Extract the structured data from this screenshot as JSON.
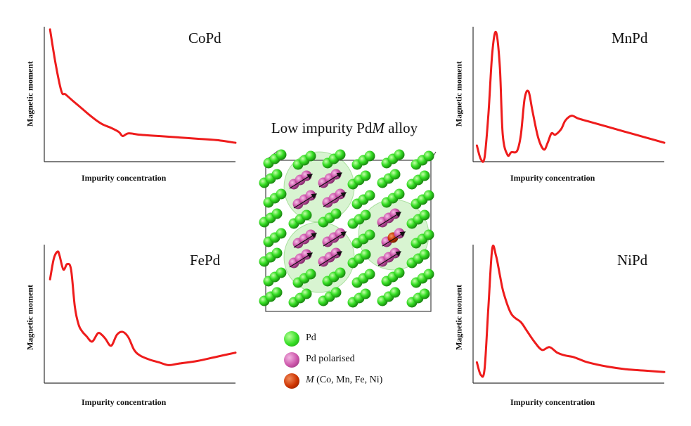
{
  "colors": {
    "curve": "#ee1c1c",
    "axis": "#333333",
    "pd": "#33dd22",
    "pd_polarised": "#cc55aa",
    "impurity": "#cc3300"
  },
  "center": {
    "title_prefix": "Low impurity Pd",
    "title_italic": "M",
    "title_suffix": " alloy",
    "legend": [
      {
        "label": "Pd",
        "color": "#33dd22"
      },
      {
        "label": "Pd polarised",
        "color": "#cc55aa"
      },
      {
        "label_italic": "M",
        "label": " (Co, Mn, Fe, Ni)",
        "color": "#cc3300"
      }
    ]
  },
  "chart_data": [
    {
      "type": "line",
      "title": "CoPd",
      "xlabel": "Impurity concentration",
      "ylabel": "Magnetic moment",
      "xlim": [
        0,
        1
      ],
      "ylim": [
        0,
        1
      ],
      "x": [
        0.03,
        0.06,
        0.09,
        0.11,
        0.15,
        0.2,
        0.25,
        0.3,
        0.35,
        0.39,
        0.41,
        0.44,
        0.5,
        0.6,
        0.7,
        0.8,
        0.9,
        1.0
      ],
      "y": [
        0.98,
        0.72,
        0.52,
        0.5,
        0.45,
        0.39,
        0.33,
        0.28,
        0.25,
        0.22,
        0.19,
        0.21,
        0.2,
        0.19,
        0.18,
        0.17,
        0.16,
        0.14
      ]
    },
    {
      "type": "line",
      "title": "MnPd",
      "xlabel": "Impurity concentration",
      "ylabel": "Magnetic moment",
      "xlim": [
        0,
        1
      ],
      "ylim": [
        0,
        1
      ],
      "x": [
        0.02,
        0.04,
        0.06,
        0.08,
        0.1,
        0.12,
        0.14,
        0.155,
        0.18,
        0.2,
        0.23,
        0.25,
        0.27,
        0.29,
        0.31,
        0.34,
        0.37,
        0.39,
        0.41,
        0.43,
        0.46,
        0.48,
        0.5,
        0.52,
        0.55,
        0.6,
        0.7,
        0.8,
        0.9,
        1.0
      ],
      "y": [
        0.12,
        0.02,
        0.03,
        0.35,
        0.8,
        0.96,
        0.7,
        0.2,
        0.05,
        0.07,
        0.08,
        0.2,
        0.47,
        0.52,
        0.38,
        0.18,
        0.09,
        0.14,
        0.21,
        0.2,
        0.24,
        0.3,
        0.33,
        0.34,
        0.32,
        0.3,
        0.26,
        0.22,
        0.18,
        0.14
      ]
    },
    {
      "type": "line",
      "title": "FePd",
      "xlabel": "Impurity concentration",
      "ylabel": "Magnetic moment",
      "xlim": [
        0,
        1
      ],
      "ylim": [
        0,
        1
      ],
      "x": [
        0.03,
        0.05,
        0.07,
        0.08,
        0.1,
        0.12,
        0.14,
        0.16,
        0.18,
        0.2,
        0.22,
        0.25,
        0.28,
        0.3,
        0.32,
        0.35,
        0.38,
        0.41,
        0.44,
        0.47,
        0.5,
        0.55,
        0.6,
        0.65,
        0.7,
        0.8,
        0.9,
        1.0
      ],
      "y": [
        0.75,
        0.9,
        0.95,
        0.92,
        0.82,
        0.86,
        0.82,
        0.55,
        0.42,
        0.37,
        0.34,
        0.3,
        0.36,
        0.35,
        0.32,
        0.27,
        0.35,
        0.37,
        0.33,
        0.24,
        0.2,
        0.17,
        0.15,
        0.13,
        0.14,
        0.16,
        0.19,
        0.22
      ]
    },
    {
      "type": "line",
      "title": "NiPd",
      "xlabel": "Impurity concentration",
      "ylabel": "Magnetic moment",
      "xlim": [
        0,
        1
      ],
      "ylim": [
        0,
        1
      ],
      "x": [
        0.02,
        0.04,
        0.06,
        0.08,
        0.1,
        0.12,
        0.14,
        0.16,
        0.2,
        0.25,
        0.28,
        0.32,
        0.36,
        0.4,
        0.44,
        0.48,
        0.52,
        0.56,
        0.6,
        0.7,
        0.8,
        0.9,
        1.0
      ],
      "y": [
        0.15,
        0.06,
        0.1,
        0.55,
        0.97,
        0.92,
        0.78,
        0.65,
        0.5,
        0.44,
        0.38,
        0.3,
        0.24,
        0.26,
        0.22,
        0.2,
        0.19,
        0.17,
        0.15,
        0.12,
        0.1,
        0.09,
        0.08
      ]
    }
  ]
}
